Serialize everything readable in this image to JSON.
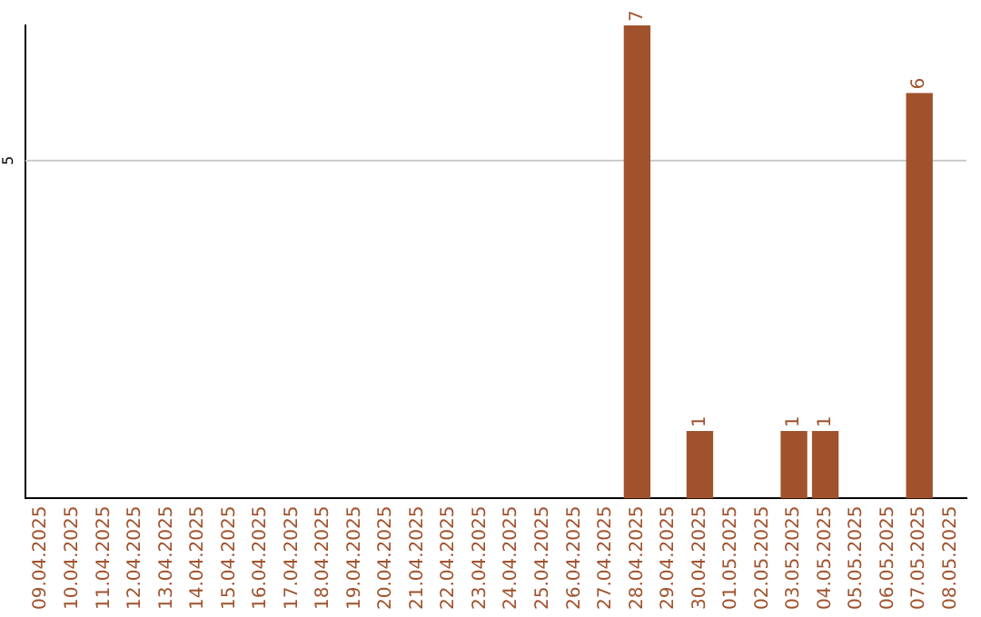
{
  "chart_data": {
    "type": "bar",
    "categories": [
      "09.04.2025",
      "10.04.2025",
      "11.04.2025",
      "12.04.2025",
      "13.04.2025",
      "14.04.2025",
      "15.04.2025",
      "16.04.2025",
      "17.04.2025",
      "18.04.2025",
      "19.04.2025",
      "20.04.2025",
      "21.04.2025",
      "22.04.2025",
      "23.04.2025",
      "24.04.2025",
      "25.04.2025",
      "26.04.2025",
      "27.04.2025",
      "28.04.2025",
      "29.04.2025",
      "30.04.2025",
      "01.05.2025",
      "02.05.2025",
      "03.05.2025",
      "04.05.2025",
      "05.05.2025",
      "06.05.2025",
      "07.05.2025",
      "08.05.2025"
    ],
    "values": [
      null,
      null,
      null,
      null,
      null,
      null,
      null,
      null,
      null,
      null,
      null,
      null,
      null,
      null,
      null,
      null,
      null,
      null,
      null,
      7,
      null,
      1,
      null,
      null,
      1,
      1,
      null,
      null,
      6,
      null
    ],
    "value_labels": [
      null,
      null,
      null,
      null,
      null,
      null,
      null,
      null,
      null,
      null,
      null,
      null,
      null,
      null,
      null,
      null,
      null,
      null,
      null,
      "7",
      null,
      "1",
      null,
      null,
      "1",
      "1",
      null,
      null,
      "6",
      null
    ],
    "color": "#a0522d",
    "ylim": [
      0,
      7
    ],
    "ref_lines": [
      {
        "axis": "y",
        "value": 5,
        "label": "5",
        "color": "#cccccc"
      }
    ],
    "legend": false
  }
}
